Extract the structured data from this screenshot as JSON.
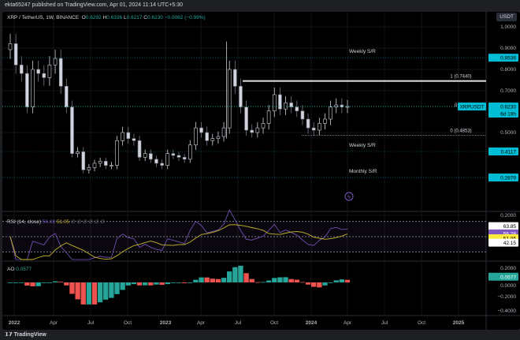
{
  "publisher": "ekta65247 published on TradingView.com, Apr 01, 2024 11:14 UTC+5:30",
  "legend": {
    "symbol": "XRP / TetherUS, 1W, BINANCE",
    "o_label": "O",
    "o": "0.6292",
    "h_label": "H",
    "h": "0.6336",
    "l_label": "L",
    "l": "0.6217",
    "c_label": "C",
    "c": "0.6230",
    "change": "−0.0062 (−0.99%)"
  },
  "currency_button": "USDT",
  "price_axis": {
    "ticks": [
      "1.0000",
      "0.9000",
      "0.8000",
      "0.7000",
      "0.5000",
      "0.2000"
    ],
    "tick_values": [
      1.0,
      0.9,
      0.8,
      0.7,
      0.5,
      0.2
    ]
  },
  "levels": [
    {
      "label": "Weekly S/R",
      "value": "0.8536",
      "price": 0.8536
    },
    {
      "label": "Weekly S/R",
      "value": "0.4117",
      "price": 0.4117
    },
    {
      "label": "Monthly S/R",
      "value": "0.2879",
      "price": 0.2879
    }
  ],
  "fib": {
    "top": "1 (0.7440)",
    "bottom": "0 (0.4853)",
    "mid": "0"
  },
  "current": {
    "symbol": "XRPUSDT",
    "price": "0.6230",
    "countdown": "6d 19h"
  },
  "rsi": {
    "label": "RSI (14, close)",
    "value": "56.28",
    "ma": "51.05",
    "extra": "∅ ∅ ∅ ∅ ∅ ∅",
    "upper": "63.85",
    "lower": "42.15"
  },
  "ao": {
    "label": "AO",
    "value": "0.0577",
    "ticks": [
      "0.2000",
      "0.0000",
      "−0.2000",
      "−0.4000"
    ]
  },
  "time_axis": [
    "2022",
    "Apr",
    "Jul",
    "Oct",
    "2023",
    "Apr",
    "Jul",
    "Oct",
    "2024",
    "Apr",
    "Jul",
    "Oct",
    "2025"
  ],
  "colors": {
    "up": "#26a69a",
    "down": "#ef5350",
    "rsi": "#7e57c2",
    "rsi_ma": "#c9b82a",
    "accent": "#00bcd4"
  },
  "chart_data": {
    "type": "candlestick",
    "interval": "1W (sampled every 2 weeks)",
    "scale": "log",
    "closes": [
      0.92,
      0.82,
      0.78,
      0.62,
      0.8,
      0.78,
      0.76,
      0.82,
      0.85,
      0.72,
      0.62,
      0.4,
      0.41,
      0.32,
      0.33,
      0.35,
      0.36,
      0.34,
      0.34,
      0.46,
      0.5,
      0.47,
      0.46,
      0.38,
      0.4,
      0.37,
      0.35,
      0.34,
      0.4,
      0.39,
      0.38,
      0.37,
      0.44,
      0.52,
      0.5,
      0.46,
      0.47,
      0.48,
      0.52,
      0.8,
      0.72,
      0.62,
      0.51,
      0.5,
      0.52,
      0.54,
      0.6,
      0.68,
      0.61,
      0.64,
      0.62,
      0.6,
      0.56,
      0.52,
      0.51,
      0.54,
      0.56,
      0.62,
      0.63,
      0.62,
      0.623
    ]
  }
}
